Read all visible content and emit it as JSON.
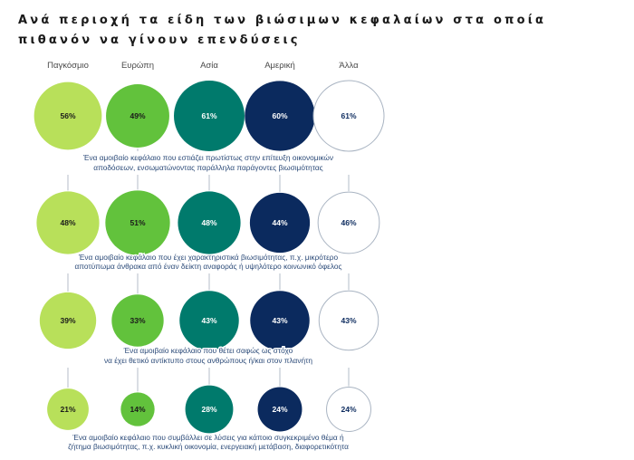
{
  "title": "Ανά περιοχή τα είδη των βιώσιμων κεφαλαίων στα οποία πιθανόν να γίνουν επενδύσεις",
  "colors": {
    "light_green": "#b8e05a",
    "green": "#62c23c",
    "teal": "#007a6c",
    "navy": "#0b2a5e",
    "outline": "#a9b4c2",
    "connector": "#c9cfd8"
  },
  "chart_data": {
    "type": "bubble-matrix",
    "title": "Ανά περιοχή τα είδη των βιώσιμων κεφαλαίων στα οποία πιθανόν να γίνουν επενδύσεις",
    "columns": [
      "Παγκόσμιο",
      "Ευρώπη",
      "Ασία",
      "Αμερική",
      "Άλλα"
    ],
    "rows": [
      {
        "label": [
          "Ένα αμοιβαίο κεφάλαιο που εστιάζει πρωτίστως στην επίτευξη οικονομικών",
          "αποδόσεων, ενσωματώνοντας παράλληλα παράγοντες βιωσιμότητας"
        ],
        "values": [
          56,
          49,
          61,
          60,
          61
        ]
      },
      {
        "label": [
          "Ένα αμοιβαίο κεφάλαιο που έχει χαρακτηριστικά βιωσιμότητας, π.χ. μικρότερο",
          "αποτύπωμα άνθρακα από έναν δείκτη αναφοράς ή υψηλότερο κοινωνικό όφελος"
        ],
        "values": [
          48,
          51,
          48,
          44,
          46
        ]
      },
      {
        "label": [
          "Ένα αμοιβαίο κεφάλαιο που θέτει σαφώς ως στόχο",
          "να έχει θετικό αντίκτυπο στους ανθρώπους ή/και στον πλανήτη"
        ],
        "values": [
          39,
          33,
          43,
          43,
          43
        ]
      },
      {
        "label": [
          "Ένα αμοιβαίο κεφάλαιο που συμβάλλει σε λύσεις για κάποιο συγκεκριμένο θέμα ή",
          "ζήτημα βιωσιμότητας, π.χ. κυκλική οικονομία, ενεργειακή μετάβαση, διαφορετικότητα"
        ],
        "values": [
          21,
          14,
          28,
          24,
          24
        ]
      }
    ],
    "unit": "%"
  }
}
